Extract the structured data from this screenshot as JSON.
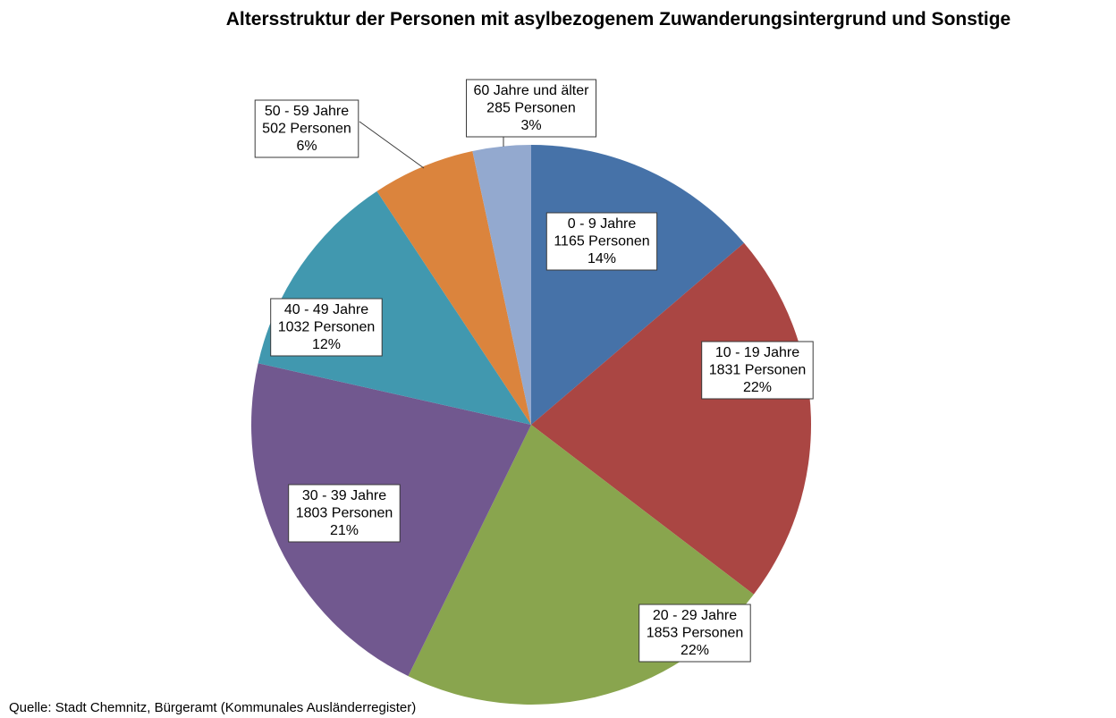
{
  "chart_data": {
    "type": "pie",
    "title": "Altersstruktur der Personen mit asylbezogenem Zuwanderungsintergrund und Sonstige",
    "source": "Quelle: Stadt Chemnitz, Bürgeramt (Kommunales Ausländerregister)",
    "start_angle_deg": 0,
    "direction": "clockwise",
    "slices": [
      {
        "label": "0 - 9 Jahre",
        "value_text": "1165 Personen",
        "value": 1165,
        "percent_text": "14%",
        "color": "#4672A8"
      },
      {
        "label": "10 - 19 Jahre",
        "value_text": "1831 Personen",
        "value": 1831,
        "percent_text": "22%",
        "color": "#AA4643"
      },
      {
        "label": "20 - 29 Jahre",
        "value_text": "1853 Personen",
        "value": 1853,
        "percent_text": "22%",
        "color": "#89A54E"
      },
      {
        "label": "30 - 39 Jahre",
        "value_text": "1803 Personen",
        "value": 1803,
        "percent_text": "21%",
        "color": "#71588F"
      },
      {
        "label": "40 - 49 Jahre",
        "value_text": "1032 Personen",
        "value": 1032,
        "percent_text": "12%",
        "color": "#4198AF"
      },
      {
        "label": "50 - 59 Jahre",
        "value_text": "502 Personen",
        "value": 502,
        "percent_text": "6%",
        "color": "#DB843D"
      },
      {
        "label": "60 Jahre und älter",
        "value_text": "285 Personen",
        "value": 285,
        "percent_text": "3%",
        "color": "#93A9CF"
      }
    ]
  }
}
